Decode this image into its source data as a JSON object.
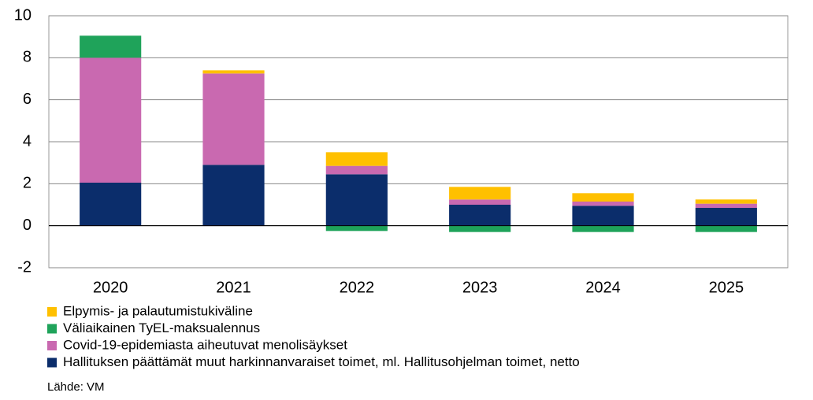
{
  "chart_data": {
    "type": "stacked_bar",
    "categories": [
      "2020",
      "2021",
      "2022",
      "2023",
      "2024",
      "2025"
    ],
    "series": [
      {
        "name": "Hallituksen päättämät muut harkinnanvaraiset toimet, ml. Hallitusohjelman toimet, netto",
        "color": "#0b2d6b",
        "values": [
          2.05,
          2.9,
          2.45,
          1.0,
          0.95,
          0.85
        ]
      },
      {
        "name": "Covid-19-epidemiasta aiheutuvat menolisäykset",
        "color": "#c969b0",
        "values": [
          5.95,
          4.35,
          0.4,
          0.25,
          0.2,
          0.2
        ]
      },
      {
        "name": "Väliaikainen TyEL-maksualennus",
        "color": "#1fa35a",
        "values": [
          1.05,
          0,
          -0.25,
          -0.3,
          -0.3,
          -0.3
        ]
      },
      {
        "name": "Elpymis- ja palautumistukiväline",
        "color": "#ffc000",
        "values": [
          0,
          0.15,
          0.65,
          0.6,
          0.4,
          0.2
        ]
      }
    ],
    "ylim": [
      -2,
      10
    ],
    "yticks": [
      -2,
      0,
      2,
      4,
      6,
      8,
      10
    ],
    "grid": true,
    "note": "Lähde: VM"
  }
}
